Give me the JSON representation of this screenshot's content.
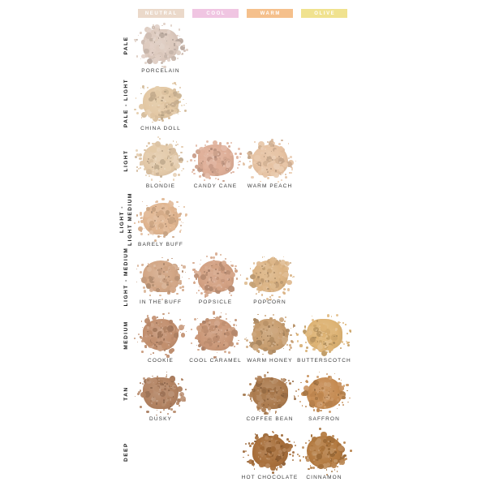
{
  "chart_data": {
    "type": "table",
    "title": "",
    "background": "#FFFFFF",
    "legend_position": "top",
    "columns": [
      {
        "id": "neutral",
        "label": "NEUTRAL",
        "color": "#EBD9CA"
      },
      {
        "id": "cool",
        "label": "COOL",
        "color": "#F0C5E2"
      },
      {
        "id": "warm",
        "label": "WARM",
        "color": "#F5C08C"
      },
      {
        "id": "olive",
        "label": "OLIVE",
        "color": "#F0E28F"
      }
    ],
    "rows": [
      {
        "label": "PALE",
        "label_lines": [
          "PALE"
        ],
        "shades": [
          {
            "name": "PORCELAIN",
            "column": "neutral",
            "color": "#DCC9BD"
          }
        ]
      },
      {
        "label": "PALE - LIGHT",
        "label_lines": [
          "PALE - LIGHT"
        ],
        "shades": [
          {
            "name": "CHINA DOLL",
            "column": "neutral",
            "color": "#E3C8A4"
          }
        ]
      },
      {
        "label": "LIGHT",
        "label_lines": [
          "LIGHT"
        ],
        "shades": [
          {
            "name": "BLONDIE",
            "column": "neutral",
            "color": "#E3C9A8"
          },
          {
            "name": "CANDY CANE",
            "column": "cool",
            "color": "#DEAE97"
          },
          {
            "name": "WARM PEACH",
            "column": "warm",
            "color": "#E6C2A2"
          }
        ]
      },
      {
        "label": "LIGHT - LIGHT MEDIUM",
        "label_lines": [
          "LIGHT -",
          "LIGHT MEDIUM"
        ],
        "shades": [
          {
            "name": "BARELY BUFF",
            "column": "neutral",
            "color": "#E0B590"
          }
        ]
      },
      {
        "label": "LIGHT - MEDIUM",
        "label_lines": [
          "LIGHT - MEDIUM"
        ],
        "shades": [
          {
            "name": "IN THE BUFF",
            "column": "neutral",
            "color": "#D2A685"
          },
          {
            "name": "POPSICLE",
            "column": "cool",
            "color": "#D3A183"
          },
          {
            "name": "POPCORN",
            "column": "warm",
            "color": "#DBB383"
          }
        ]
      },
      {
        "label": "MEDIUM",
        "label_lines": [
          "MEDIUM"
        ],
        "shades": [
          {
            "name": "COOKIE",
            "column": "neutral",
            "color": "#C28F6E"
          },
          {
            "name": "COOL CARAMEL",
            "column": "cool",
            "color": "#CB9878"
          },
          {
            "name": "WARM HONEY",
            "column": "warm",
            "color": "#C89E70"
          },
          {
            "name": "BUTTERSCOTCH",
            "column": "olive",
            "color": "#DDB374"
          }
        ]
      },
      {
        "label": "TAN",
        "label_lines": [
          "TAN"
        ],
        "shades": [
          {
            "name": "DUSKY",
            "column": "neutral",
            "color": "#B28261"
          },
          {
            "name": "COFFEE BEAN",
            "column": "warm",
            "color": "#AC7B4E"
          },
          {
            "name": "SAFFRON",
            "column": "olive",
            "color": "#C58B52"
          }
        ]
      },
      {
        "label": "DEEP",
        "label_lines": [
          "DEEP"
        ],
        "shades": [
          {
            "name": "HOT CHOCOLATE",
            "column": "warm",
            "color": "#A86F3B"
          },
          {
            "name": "CINNAMON",
            "column": "olive",
            "color": "#B37A40"
          }
        ]
      }
    ]
  }
}
